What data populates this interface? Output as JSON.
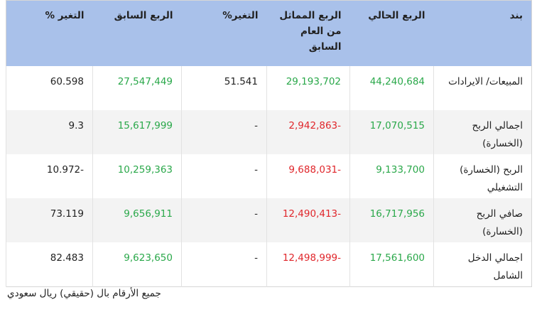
{
  "table": {
    "header": [
      "بند",
      "الربع الحالي",
      "الربع المماثل من العام السابق",
      "التغير%",
      "الربع السابق",
      "التغير %"
    ],
    "rows": [
      [
        "المبيعات/ الايرادات",
        "44,240,684",
        "29,193,702",
        "51.541",
        "27,547,449",
        "60.598"
      ],
      [
        "اجمالي الربح (الخسارة)",
        "17,070,515",
        "2,942,863-",
        "-",
        "15,617,999",
        "9.3"
      ],
      [
        "الربح (الخسارة) التشغيلي",
        "9,133,700",
        "9,688,031-",
        "-",
        "10,259,363",
        "10.972-"
      ],
      [
        "صافي الربح (الخسارة)",
        "16,717,956",
        "12,490,413-",
        "-",
        "9,656,911",
        "73.119"
      ],
      [
        "اجمالي الدخل الشامل",
        "17,561,600",
        "12,498,999-",
        "-",
        "9,623,650",
        "82.483"
      ]
    ]
  },
  "footnote": "جميع الأرقام بال (حقيقي) ريال سعودي"
}
